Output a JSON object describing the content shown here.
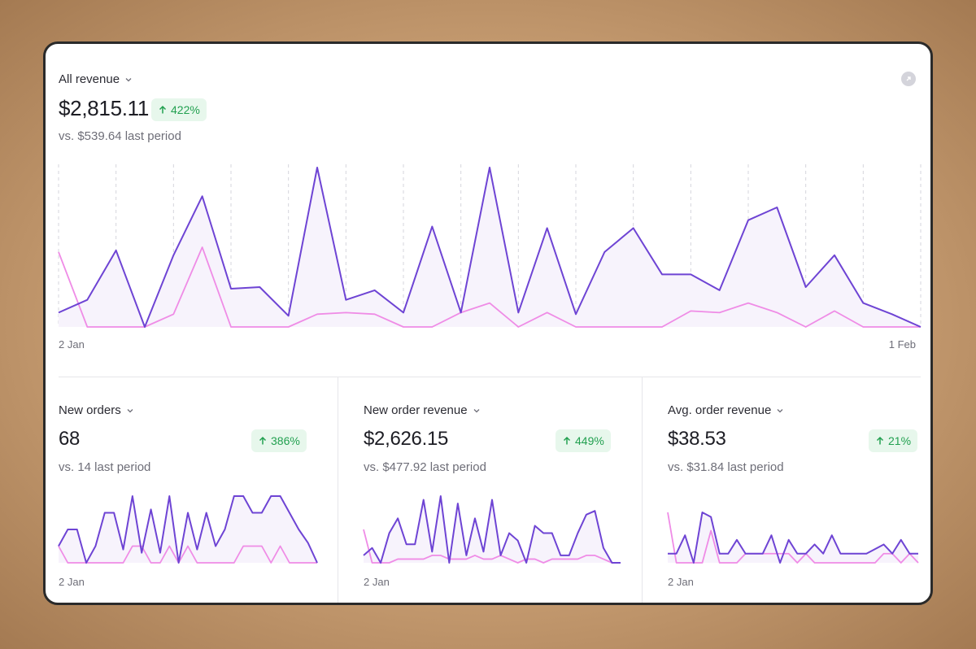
{
  "main": {
    "title": "All revenue",
    "value": "$2,815.11",
    "badge": "422%",
    "compare": "vs. $539.64 last period",
    "x_start": "2 Jan",
    "x_end": "1 Feb"
  },
  "cards": [
    {
      "title": "New orders",
      "value": "68",
      "badge": "386%",
      "compare": "vs. 14 last period",
      "x_start": "2 Jan"
    },
    {
      "title": "New order revenue",
      "value": "$2,626.15",
      "badge": "449%",
      "compare": "vs. $477.92 last period",
      "x_start": "2 Jan"
    },
    {
      "title": "Avg. order revenue",
      "value": "$38.53",
      "badge": "21%",
      "compare": "vs. $31.84 last period",
      "x_start": "2 Jan"
    }
  ],
  "colors": {
    "current_series": "#6e44d4",
    "previous_series": "#ef8ce6",
    "fill": "#f7f3fc",
    "positive_badge_bg": "#e7f7ec",
    "positive_badge_text": "#22a050"
  },
  "icons": {
    "dropdown": "chevron-down-icon",
    "trend": "arrow-up-icon",
    "expand": "expand-icon"
  },
  "chart_data": [
    {
      "type": "area",
      "x_range": [
        "2 Jan",
        "1 Feb"
      ],
      "grid": "vertical dashed",
      "series": [
        {
          "values": [
            9,
            17,
            48,
            0,
            45,
            82,
            24,
            25,
            7,
            100,
            17,
            23,
            9,
            63,
            9,
            100,
            9,
            62,
            8,
            47,
            62,
            33,
            33,
            23,
            67,
            75,
            25,
            45,
            15,
            8,
            0
          ]
        },
        {
          "values": [
            47,
            0,
            0,
            0,
            8,
            50,
            0,
            0,
            0,
            8,
            9,
            8,
            0,
            0,
            9,
            15,
            0,
            9,
            0,
            0,
            0,
            0,
            10,
            9,
            15,
            9,
            0,
            10,
            0,
            0,
            0
          ]
        }
      ]
    },
    {
      "type": "area",
      "x_range": [
        "2 Jan"
      ],
      "series": [
        {
          "values": [
            25,
            50,
            50,
            0,
            25,
            75,
            75,
            20,
            100,
            15,
            80,
            15,
            100,
            0,
            75,
            20,
            75,
            25,
            50,
            100,
            100,
            75,
            75,
            100,
            100,
            75,
            50,
            30,
            0
          ]
        },
        {
          "values": [
            25,
            0,
            0,
            0,
            0,
            0,
            0,
            0,
            25,
            25,
            0,
            0,
            25,
            0,
            25,
            0,
            0,
            0,
            0,
            0,
            25,
            25,
            25,
            0,
            25,
            0,
            0,
            0,
            0
          ]
        }
      ]
    },
    {
      "type": "area",
      "x_range": [
        "2 Jan"
      ],
      "series": [
        {
          "values": [
            10,
            20,
            0,
            40,
            60,
            25,
            25,
            85,
            15,
            90,
            0,
            80,
            10,
            60,
            15,
            85,
            10,
            40,
            30,
            0,
            50,
            40,
            40,
            10,
            10,
            40,
            65,
            70,
            20,
            0,
            0
          ]
        },
        {
          "values": [
            45,
            0,
            0,
            0,
            5,
            5,
            5,
            5,
            10,
            10,
            5,
            5,
            5,
            10,
            5,
            5,
            10,
            5,
            0,
            5,
            5,
            0,
            5,
            5,
            5,
            5,
            10,
            10,
            5,
            0,
            0
          ]
        }
      ]
    },
    {
      "type": "area",
      "x_range": [
        "2 Jan"
      ],
      "series": [
        {
          "values": [
            10,
            10,
            30,
            0,
            55,
            50,
            10,
            10,
            25,
            10,
            10,
            10,
            30,
            0,
            25,
            10,
            10,
            20,
            10,
            30,
            10,
            10,
            10,
            10,
            15,
            20,
            10,
            25,
            10,
            10
          ]
        },
        {
          "values": [
            55,
            0,
            0,
            0,
            0,
            35,
            0,
            0,
            0,
            10,
            10,
            10,
            10,
            10,
            10,
            0,
            10,
            0,
            0,
            0,
            0,
            0,
            0,
            0,
            0,
            10,
            10,
            0,
            10,
            0
          ]
        }
      ]
    }
  ]
}
